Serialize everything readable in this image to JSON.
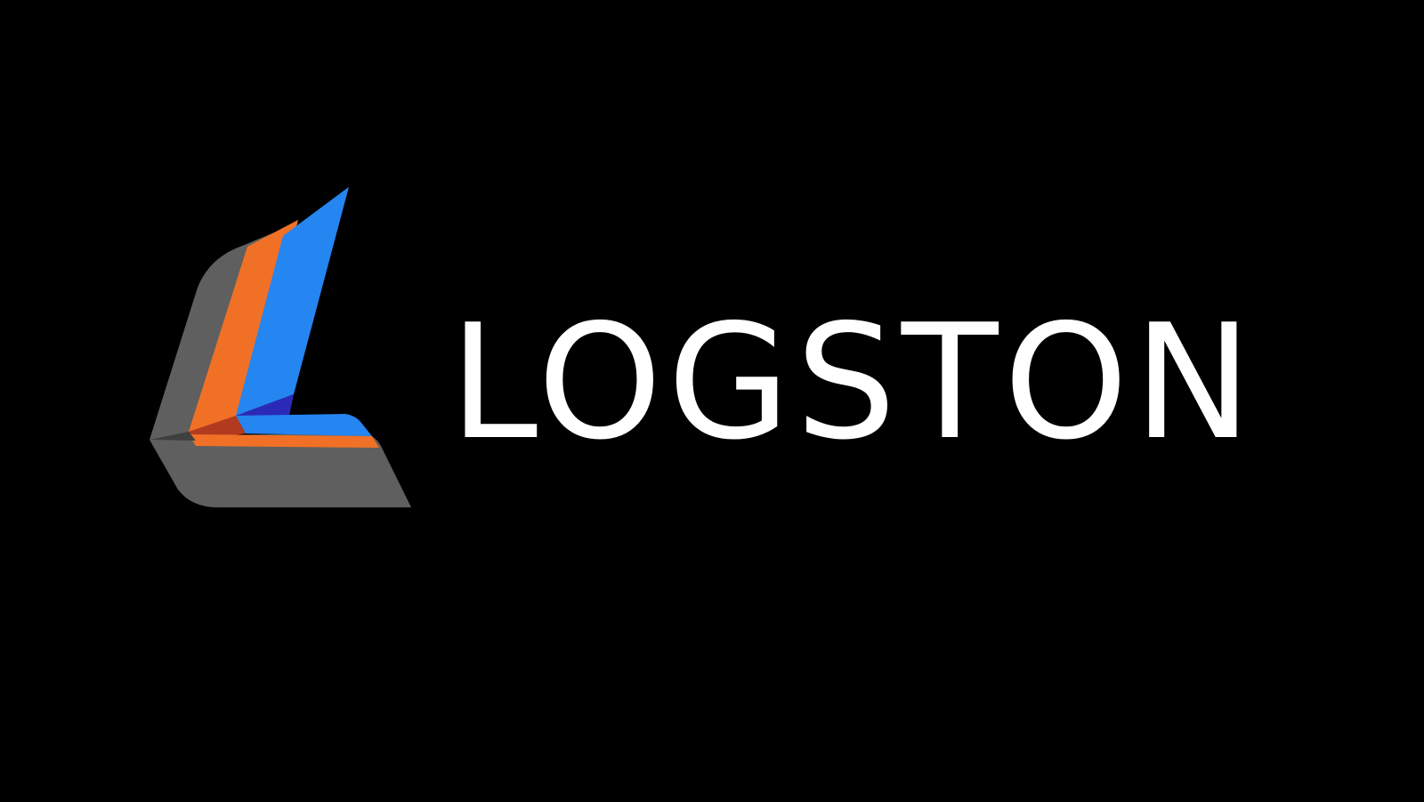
{
  "brand": {
    "name": "LOGSTON",
    "text_color": "#ffffff",
    "background_color": "#000000"
  },
  "logo": {
    "icon": "stylized-L-logo-icon",
    "colors": {
      "gray": "#5f5f5f",
      "dark_gray": "#3f3f3f",
      "orange": "#f07126",
      "dark_orange": "#b23a1f",
      "blue": "#2585f1",
      "dark_blue": "#2b2ab8"
    }
  }
}
